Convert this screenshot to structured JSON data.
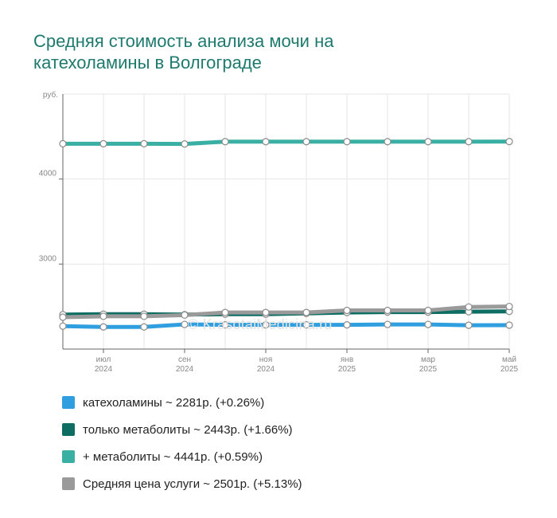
{
  "title_lines": [
    "Средняя стоимость анализа мочи на",
    "катехоламины в Волгограде"
  ],
  "watermark": "© KrasotaiMedicina.ru",
  "chart_data": {
    "type": "line",
    "title": "Средняя стоимость анализа мочи на катехоламины в Волгограде",
    "ylabel": "руб.",
    "ylim": [
      2000,
      5000
    ],
    "ytick_labels": [
      "4000",
      "3000"
    ],
    "ytick_values": [
      4000,
      3000
    ],
    "x_count": 12,
    "xtick_labels": [
      {
        "index": 1,
        "line1": "июл",
        "line2": "2024"
      },
      {
        "index": 3,
        "line1": "сен",
        "line2": "2024"
      },
      {
        "index": 5,
        "line1": "ноя",
        "line2": "2024"
      },
      {
        "index": 7,
        "line1": "янв",
        "line2": "2025"
      },
      {
        "index": 9,
        "line1": "мар",
        "line2": "2025"
      },
      {
        "index": 11,
        "line1": "май",
        "line2": "2025"
      }
    ],
    "grid": true,
    "series": [
      {
        "name": "катехоламины",
        "color": "#2f9fe0",
        "values": [
          2270,
          2260,
          2260,
          2290,
          2285,
          2285,
          2285,
          2285,
          2290,
          2290,
          2280,
          2281
        ]
      },
      {
        "name": "только метаболиты",
        "color": "#0e6e63",
        "values": [
          2405,
          2410,
          2410,
          2405,
          2410,
          2410,
          2420,
          2430,
          2435,
          2435,
          2440,
          2443
        ]
      },
      {
        "name": "+ метаболиты",
        "color": "#3aafa4",
        "values": [
          4415,
          4415,
          4415,
          4413,
          4440,
          4440,
          4440,
          4440,
          4440,
          4440,
          4440,
          4441
        ]
      },
      {
        "name": "Средняя цена услуги",
        "color": "#9a9a9a",
        "values": [
          2375,
          2385,
          2385,
          2400,
          2430,
          2430,
          2430,
          2455,
          2455,
          2455,
          2495,
          2501
        ]
      }
    ]
  },
  "legend": [
    {
      "label": "катехоламины ~ 2281р. (+0.26%)",
      "color": "#2f9fe0"
    },
    {
      "label": "только метаболиты ~ 2443р. (+1.66%)",
      "color": "#0e6e63"
    },
    {
      "label": "+ метаболиты ~ 4441р. (+0.59%)",
      "color": "#3aafa4"
    },
    {
      "label": "Средняя цена услуги ~ 2501р. (+5.13%)",
      "color": "#9a9a9a"
    }
  ]
}
